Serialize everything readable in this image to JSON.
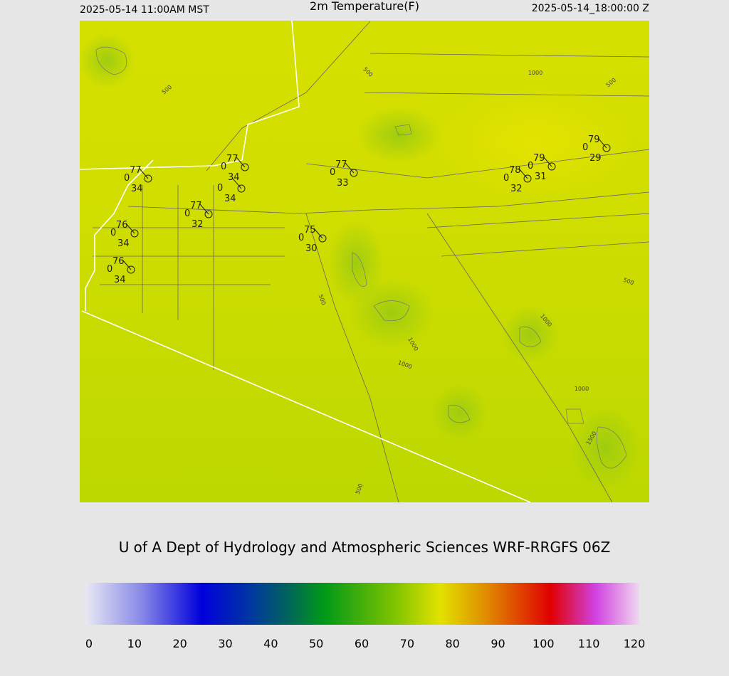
{
  "header": {
    "valid_local": "2025-05-14 11:00AM MST",
    "title": "2m Temperature(F)",
    "valid_utc": "2025-05-14_18:00:00 Z"
  },
  "map": {
    "contour_labels": [
      500,
      500,
      1000,
      500,
      500,
      500,
      1000,
      1000,
      1000,
      1000,
      1500,
      500
    ],
    "stations": [
      {
        "temp": 77,
        "sky": 0,
        "dewpoint": 34
      },
      {
        "temp": 77,
        "sky": 0,
        "dewpoint": 34
      },
      {
        "sky": 0,
        "dewpoint": 34
      },
      {
        "temp": 77,
        "sky": 0,
        "dewpoint": 32
      },
      {
        "temp": 76,
        "sky": 0,
        "dewpoint": 34
      },
      {
        "temp": 76,
        "sky": 0,
        "dewpoint": 34
      },
      {
        "temp": 77,
        "sky": 0,
        "dewpoint": 33
      },
      {
        "temp": 75,
        "sky": 0,
        "dewpoint": 30
      },
      {
        "temp": 78,
        "sky": 0,
        "dewpoint": 32
      },
      {
        "temp": 79,
        "sky": 0,
        "dewpoint": 31
      },
      {
        "temp": 79,
        "sky": 0,
        "dewpoint": 29
      }
    ]
  },
  "credit": "U of A Dept of Hydrology and Atmospheric Sciences WRF-RRGFS 06Z",
  "colorbar": {
    "ticks": [
      0,
      10,
      20,
      30,
      40,
      50,
      60,
      70,
      80,
      90,
      100,
      110,
      120
    ]
  }
}
